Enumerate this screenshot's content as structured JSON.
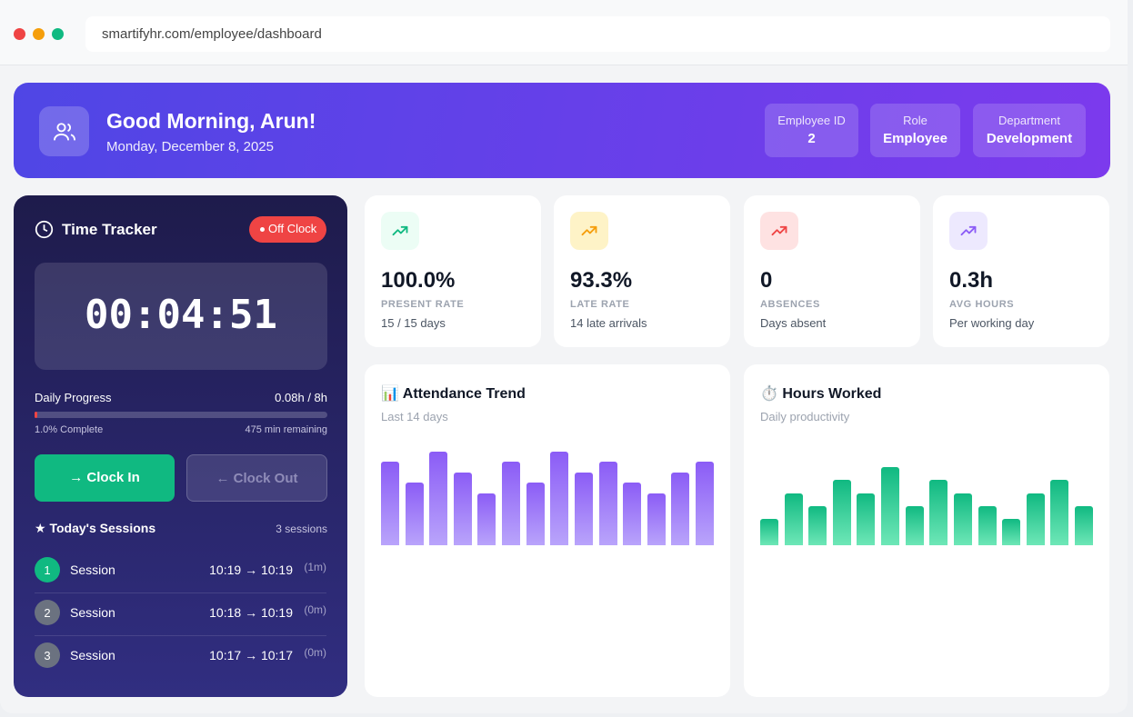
{
  "browser": {
    "url": "smartifyhr.com/employee/dashboard"
  },
  "banner": {
    "greeting": "Good Morning, Arun!",
    "date": "Monday, December 8, 2025",
    "chips": [
      {
        "label": "Employee ID",
        "value": "2"
      },
      {
        "label": "Role",
        "value": "Employee"
      },
      {
        "label": "Department",
        "value": "Development"
      }
    ]
  },
  "tracker": {
    "title": "Time Tracker",
    "status": "Off Clock",
    "timer": "00:04:51",
    "progress_label": "Daily Progress",
    "progress_value": "0.08h / 8h",
    "progress_percent": 1.0,
    "complete_text": "1.0% Complete",
    "remaining_text": "475 min remaining",
    "clock_in": "→ Clock In",
    "clock_out": "← Clock Out",
    "sessions_title": "Today's Sessions",
    "sessions_count": "3 sessions",
    "sessions": [
      {
        "num": "1",
        "label": "Session",
        "range": "10:19 → 10:19",
        "dur": "(1m)"
      },
      {
        "num": "2",
        "label": "Session",
        "range": "10:18 → 10:19",
        "dur": "(0m)"
      },
      {
        "num": "3",
        "label": "Session",
        "range": "10:17 → 10:17",
        "dur": "(0m)"
      }
    ]
  },
  "stats": [
    {
      "value": "100.0%",
      "label": "PRESENT RATE",
      "sub": "15 / 15 days",
      "color": "#10b981",
      "bg": "#ecfdf5"
    },
    {
      "value": "93.3%",
      "label": "LATE RATE",
      "sub": "14 late arrivals",
      "color": "#f59e0b",
      "bg": "#fef3c7"
    },
    {
      "value": "0",
      "label": "ABSENCES",
      "sub": "Days absent",
      "color": "#ef4444",
      "bg": "#fee2e2"
    },
    {
      "value": "0.3h",
      "label": "AVG HOURS",
      "sub": "Per working day",
      "color": "#8b5cf6",
      "bg": "#ede9fe"
    }
  ],
  "chart_data": [
    {
      "type": "bar",
      "title": "Attendance Trend",
      "subtitle": "Last 14 days",
      "icon": "📊",
      "values": [
        80,
        60,
        90,
        70,
        50,
        80,
        60,
        90,
        70,
        80,
        60,
        50,
        70,
        80
      ],
      "ylim": [
        0,
        100
      ],
      "grid": false,
      "color": "#8b5cf6"
    },
    {
      "type": "bar",
      "title": "Hours Worked",
      "subtitle": "Daily productivity",
      "icon": "⏱️",
      "values": [
        2,
        4,
        3,
        5,
        4,
        6,
        3,
        5,
        4,
        3,
        2,
        4,
        5,
        3
      ],
      "ylim": [
        0,
        8
      ],
      "grid": false,
      "color": "#10b981"
    }
  ]
}
